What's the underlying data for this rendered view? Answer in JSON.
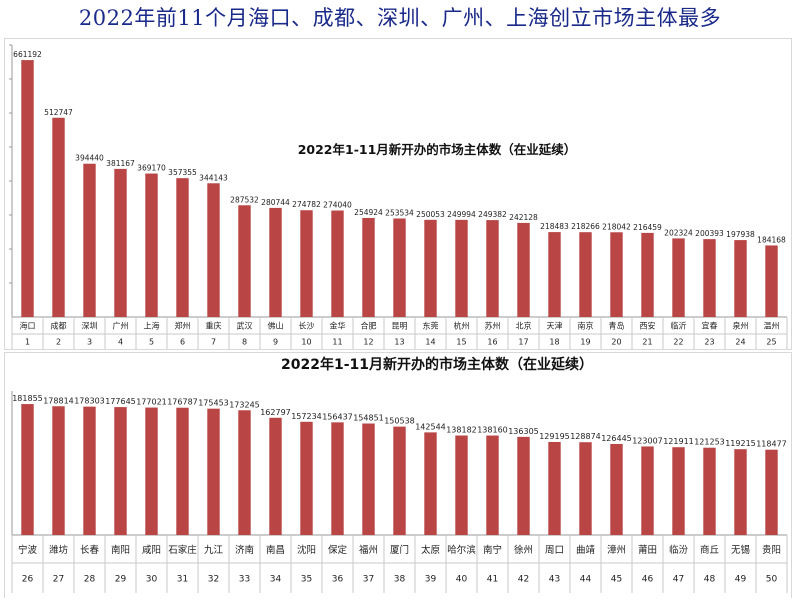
{
  "page": {
    "title": "2022年前11个月海口、成都、深圳、广州、上海创立市场主体最多"
  },
  "chart_data": [
    {
      "type": "bar",
      "title": "2022年1-11月新开办的市场主体数（在业延续）",
      "categories": [
        "海口",
        "成都",
        "深圳",
        "广州",
        "上海",
        "郑州",
        "重庆",
        "武汉",
        "佛山",
        "长沙",
        "金华",
        "合肥",
        "昆明",
        "东莞",
        "杭州",
        "苏州",
        "北京",
        "天津",
        "南京",
        "青岛",
        "西安",
        "临沂",
        "宜春",
        "泉州",
        "温州"
      ],
      "ranks": [
        "1",
        "2",
        "3",
        "4",
        "5",
        "6",
        "7",
        "8",
        "9",
        "10",
        "11",
        "12",
        "13",
        "14",
        "15",
        "16",
        "17",
        "18",
        "19",
        "20",
        "21",
        "22",
        "23",
        "24",
        "25"
      ],
      "values": [
        661192,
        512747,
        394440,
        381167,
        369170,
        357355,
        344143,
        287532,
        280744,
        274782,
        274040,
        254924,
        253534,
        250053,
        249994,
        249382,
        242128,
        218483,
        218266,
        218042,
        216459,
        202324,
        200393,
        197938,
        184168
      ],
      "ylim": [
        0,
        700000
      ],
      "grid": false,
      "bar_color": "#b94545"
    },
    {
      "type": "bar",
      "title": "2022年1-11月新开办的市场主体数（在业延续）",
      "categories": [
        "宁波",
        "潍坊",
        "长春",
        "南阳",
        "咸阳",
        "石家庄",
        "九江",
        "济南",
        "南昌",
        "沈阳",
        "保定",
        "福州",
        "厦门",
        "太原",
        "哈尔滨",
        "南宁",
        "徐州",
        "周口",
        "曲靖",
        "漳州",
        "莆田",
        "临汾",
        "商丘",
        "无锡",
        "贵阳"
      ],
      "ranks": [
        "26",
        "27",
        "28",
        "29",
        "30",
        "31",
        "32",
        "33",
        "34",
        "35",
        "36",
        "37",
        "38",
        "39",
        "40",
        "41",
        "42",
        "43",
        "44",
        "45",
        "46",
        "47",
        "48",
        "49",
        "50"
      ],
      "values": [
        181855,
        178814,
        178303,
        177645,
        177021,
        176787,
        175453,
        173245,
        162797,
        157234,
        156437,
        154851,
        150538,
        142544,
        138182,
        138160,
        136305,
        129195,
        128874,
        126445,
        123007,
        121911,
        121253,
        119215,
        118477
      ],
      "ylim": [
        0,
        200000
      ],
      "grid": false,
      "bar_color": "#b94545"
    }
  ]
}
